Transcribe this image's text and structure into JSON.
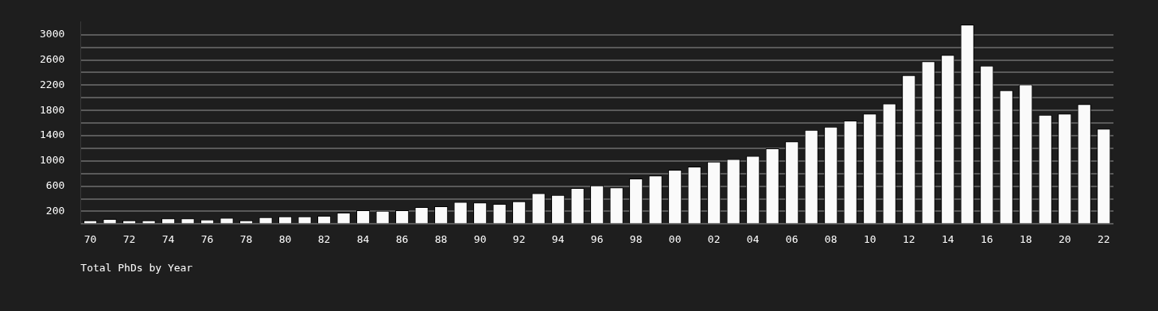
{
  "chart_data": {
    "type": "bar",
    "title": "Total PhDs by Year",
    "categories": [
      "70",
      null,
      "72",
      null,
      "74",
      null,
      "76",
      null,
      "78",
      null,
      "80",
      null,
      "82",
      null,
      "84",
      null,
      "86",
      null,
      "88",
      null,
      "90",
      null,
      "92",
      null,
      "94",
      null,
      "96",
      null,
      "98",
      null,
      "00",
      null,
      "02",
      null,
      "04",
      null,
      "06",
      null,
      "08",
      null,
      "10",
      null,
      "12",
      null,
      "14",
      null,
      "16",
      null,
      "18",
      null,
      "20",
      null,
      "22"
    ],
    "values": [
      60,
      80,
      60,
      60,
      90,
      90,
      70,
      100,
      60,
      110,
      120,
      120,
      130,
      180,
      220,
      210,
      220,
      270,
      280,
      350,
      340,
      320,
      360,
      490,
      460,
      570,
      610,
      580,
      720,
      770,
      860,
      910,
      990,
      1030,
      1080,
      1200,
      1310,
      1490,
      1540,
      1640,
      1750,
      1910,
      2360,
      2580,
      2680,
      3160,
      2510,
      2120,
      2210,
      1730,
      1750,
      1900,
      1510
    ],
    "color": "#fafafa",
    "ylim": [
      0,
      3200
    ],
    "yticks": [
      {
        "value": 0,
        "label": null
      },
      200,
      {
        "value": 400,
        "label": null
      },
      600,
      {
        "value": 800,
        "label": null
      },
      1000,
      {
        "value": 1200,
        "label": null
      },
      1400,
      {
        "value": 1600,
        "label": null
      },
      1800,
      {
        "value": 2000,
        "label": null
      },
      2200,
      {
        "value": 2400,
        "label": null
      },
      2600,
      {
        "value": 2800,
        "label": null
      },
      3000
    ],
    "grid": "y"
  }
}
